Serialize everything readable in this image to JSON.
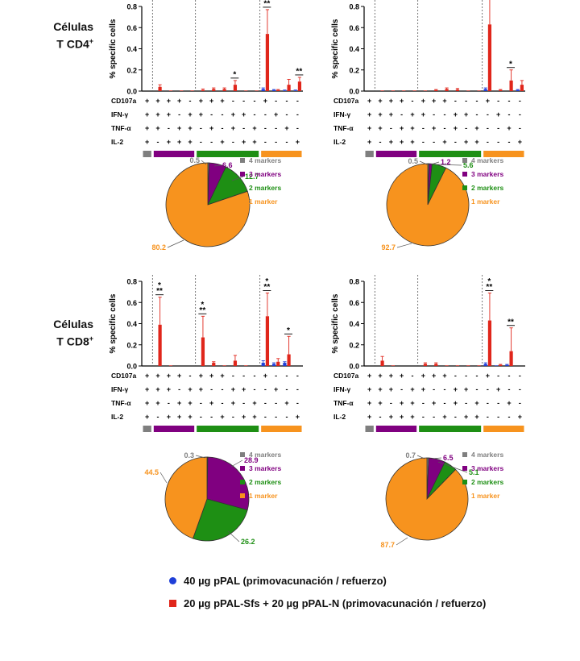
{
  "row_labels": [
    {
      "line1": "Células",
      "line2": "T CD4",
      "sup": "+"
    },
    {
      "line1": "Células",
      "line2": "T CD8",
      "sup": "+"
    }
  ],
  "colors": {
    "group1": "#1f3fd8",
    "group2": "#e0261b",
    "four_markers": "#7f7f7f",
    "three_markers": "#800080",
    "two_markers": "#1e8f14",
    "one_marker": "#f7931e"
  },
  "markers": [
    "CD107a",
    "IFN-γ",
    "TNF-α",
    "IL-2"
  ],
  "combo_signs": [
    [
      "+",
      "+",
      "+",
      "+"
    ],
    [
      "+",
      "+",
      "+",
      "-"
    ],
    [
      "+",
      "+",
      "-",
      "+"
    ],
    [
      "+",
      "-",
      "+",
      "+"
    ],
    [
      "-",
      "+",
      "+",
      "+"
    ],
    [
      "+",
      "+",
      "-",
      "-"
    ],
    [
      "+",
      "-",
      "+",
      "-"
    ],
    [
      "+",
      "-",
      "-",
      "+"
    ],
    [
      "-",
      "+",
      "+",
      "-"
    ],
    [
      "-",
      "+",
      "-",
      "+"
    ],
    [
      "-",
      "-",
      "+",
      "+"
    ],
    [
      "+",
      "-",
      "-",
      "-"
    ],
    [
      "-",
      "+",
      "-",
      "-"
    ],
    [
      "-",
      "-",
      "+",
      "-"
    ],
    [
      "-",
      "-",
      "-",
      "+"
    ]
  ],
  "legend": [
    {
      "label": "40 µg pPAL (primovacunación / refuerzo)",
      "color": "#1f3fd8",
      "shape": "circle"
    },
    {
      "label": "20 µg pPAL-Sfs + 20 µg pPAL-N (primovacunación / refuerzo)",
      "color": "#e0261b",
      "shape": "square"
    }
  ],
  "pie_legend": [
    "4 markers",
    "3 markers",
    "2 markers",
    "1 marker"
  ],
  "chart_data": [
    {
      "type": "bar",
      "panel": "CD4 group 1",
      "ylabel": "% specific cells",
      "ylim": [
        0,
        0.8
      ],
      "yticks": [
        "0.0",
        "0.2",
        "0.4",
        "0.6",
        "0.8"
      ],
      "series": [
        {
          "name": "40 µg pPAL (primovacunación / refuerzo)",
          "values": [
            0,
            0,
            0,
            0,
            0,
            0,
            0,
            0,
            0,
            0,
            0,
            0.02,
            0.01,
            0.005,
            0.005
          ],
          "errors": [
            0,
            0,
            0,
            0,
            0,
            0,
            0,
            0,
            0,
            0,
            0,
            0.01,
            0.005,
            0.005,
            0.005
          ]
        },
        {
          "name": "20 µg pPAL-Sfs + 20 µg pPAL-N (primovacunación / refuerzo)",
          "values": [
            0,
            0.04,
            0.005,
            0.005,
            0.005,
            0.01,
            0.02,
            0.02,
            0.06,
            0.005,
            0.005,
            0.54,
            0.01,
            0.06,
            0.09
          ],
          "errors": [
            0,
            0.02,
            0,
            0,
            0,
            0.01,
            0.01,
            0.01,
            0.04,
            0,
            0,
            0.23,
            0.005,
            0.05,
            0.04
          ]
        }
      ],
      "annotations": [
        {
          "bar": 8,
          "text": "*"
        },
        {
          "bar": 11,
          "text": "**"
        },
        {
          "bar": 14,
          "text": "**"
        }
      ],
      "pie": [
        {
          "label": "4 markers",
          "value": 0.5
        },
        {
          "label": "3 markers",
          "value": 6.6
        },
        {
          "label": "2 markers",
          "value": 12.7
        },
        {
          "label": "1 marker",
          "value": 80.2
        }
      ],
      "pie_labels": [
        "0.5",
        "6.6",
        "12.7",
        "80.2"
      ]
    },
    {
      "type": "bar",
      "panel": "CD4 group 2",
      "ylabel": "% specific cells",
      "ylim": [
        0,
        0.8
      ],
      "yticks": [
        "0.0",
        "0.2",
        "0.4",
        "0.6",
        "0.8"
      ],
      "series": [
        {
          "name": "40 µg pPAL (primovacunación / refuerzo)",
          "values": [
            0,
            0,
            0,
            0,
            0,
            0,
            0,
            0,
            0,
            0,
            0,
            0.02,
            0,
            0,
            0.01
          ],
          "errors": [
            0,
            0,
            0,
            0,
            0,
            0,
            0,
            0,
            0,
            0,
            0,
            0.01,
            0,
            0,
            0.005
          ]
        },
        {
          "name": "20 µg pPAL-Sfs + 20 µg pPAL-N (primovacunación / refuerzo)",
          "values": [
            0,
            0.005,
            0.005,
            0.005,
            0.005,
            0.005,
            0.01,
            0.02,
            0.015,
            0.005,
            0.005,
            0.63,
            0.01,
            0.1,
            0.06
          ],
          "errors": [
            0,
            0,
            0,
            0,
            0,
            0,
            0.005,
            0.01,
            0.01,
            0,
            0,
            0.27,
            0.005,
            0.1,
            0.04
          ]
        }
      ],
      "annotations": [
        {
          "bar": 13,
          "text": "*"
        }
      ],
      "pie": [
        {
          "label": "4 markers",
          "value": 0.5
        },
        {
          "label": "3 markers",
          "value": 1.2
        },
        {
          "label": "2 markers",
          "value": 5.6
        },
        {
          "label": "1 marker",
          "value": 92.7
        }
      ],
      "pie_labels": [
        "0.5",
        "1.2",
        "5.6",
        "92.7"
      ]
    },
    {
      "type": "bar",
      "panel": "CD8 group 1",
      "ylabel": "% specific cells",
      "ylim": [
        0,
        0.8
      ],
      "yticks": [
        "0.0",
        "0.2",
        "0.4",
        "0.6",
        "0.8"
      ],
      "series": [
        {
          "name": "40 µg pPAL (primovacunación / refuerzo)",
          "values": [
            0,
            0,
            0,
            0,
            0,
            0,
            0,
            0,
            0,
            0,
            0,
            0.03,
            0.02,
            0.03,
            0
          ],
          "errors": [
            0,
            0,
            0,
            0,
            0,
            0,
            0,
            0,
            0,
            0,
            0,
            0.02,
            0.01,
            0.01,
            0
          ]
        },
        {
          "name": "20 µg pPAL-Sfs + 20 µg pPAL-N (primovacunación / refuerzo)",
          "values": [
            0,
            0.39,
            0.005,
            0,
            0,
            0.27,
            0.03,
            0.005,
            0.05,
            0.005,
            0,
            0.47,
            0.04,
            0.11,
            0
          ],
          "errors": [
            0,
            0.26,
            0,
            0,
            0,
            0.2,
            0.01,
            0,
            0.05,
            0,
            0,
            0.22,
            0.03,
            0.17,
            0
          ]
        }
      ],
      "annotations": [
        {
          "bar": 1,
          "text": "*\n**"
        },
        {
          "bar": 5,
          "text": "*\n**"
        },
        {
          "bar": 11,
          "text": "*\n**"
        },
        {
          "bar": 13,
          "text": "*"
        }
      ],
      "pie": [
        {
          "label": "4 markers",
          "value": 0.3
        },
        {
          "label": "3 markers",
          "value": 28.9
        },
        {
          "label": "2 markers",
          "value": 26.2
        },
        {
          "label": "1 marker",
          "value": 44.5
        }
      ],
      "pie_labels": [
        "0.3",
        "28.9",
        "26.2",
        "44.5"
      ]
    },
    {
      "type": "bar",
      "panel": "CD8 group 2",
      "ylabel": "% specific cells",
      "ylim": [
        0,
        0.8
      ],
      "yticks": [
        "0.0",
        "0.2",
        "0.4",
        "0.6",
        "0.8"
      ],
      "series": [
        {
          "name": "40 µg pPAL (primovacunación / refuerzo)",
          "values": [
            0,
            0,
            0,
            0,
            0,
            0,
            0,
            0,
            0,
            0,
            0,
            0.02,
            0.005,
            0.01,
            0
          ],
          "errors": [
            0,
            0,
            0,
            0,
            0,
            0,
            0,
            0,
            0,
            0,
            0,
            0.01,
            0,
            0.005,
            0
          ]
        },
        {
          "name": "20 µg pPAL-Sfs + 20 µg pPAL-N (primovacunación / refuerzo)",
          "values": [
            0,
            0.05,
            0.005,
            0,
            0,
            0.02,
            0.02,
            0.005,
            0.005,
            0.005,
            0.005,
            0.43,
            0.01,
            0.14,
            0
          ],
          "errors": [
            0,
            0.04,
            0,
            0,
            0,
            0.01,
            0.01,
            0,
            0,
            0,
            0,
            0.26,
            0.005,
            0.22,
            0
          ]
        }
      ],
      "annotations": [
        {
          "bar": 11,
          "text": "*\n**"
        },
        {
          "bar": 13,
          "text": "**"
        }
      ],
      "pie": [
        {
          "label": "4 markers",
          "value": 0.7
        },
        {
          "label": "3 markers",
          "value": 6.5
        },
        {
          "label": "2 markers",
          "value": 5.1
        },
        {
          "label": "1 marker",
          "value": 87.7
        }
      ],
      "pie_labels": [
        "0.7",
        "6.5",
        "5.1",
        "87.7"
      ]
    }
  ]
}
